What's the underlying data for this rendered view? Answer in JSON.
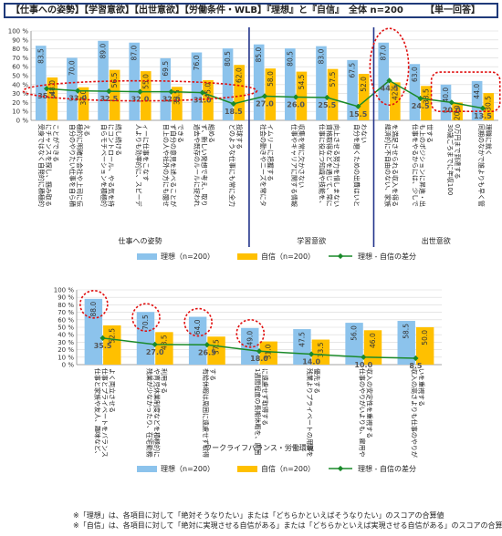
{
  "header": {
    "title": "【仕事への姿勢】【学習意欲】【出世意欲】【労働条件・WLB】『理想』と『自信』　全体 n=200",
    "answer_type": "【単一回答】"
  },
  "legend": {
    "ideal": "理想（n=200）",
    "confidence": "自信（n=200）",
    "diff": "理想 - 自信の差分"
  },
  "colors": {
    "ideal": "#8cc3ec",
    "confidence": "#ffc000",
    "diff": "#1a8a2a",
    "highlight": "#e01010",
    "divider": "#22338a"
  },
  "chart_data": [
    {
      "type": "bar",
      "ylim": [
        0,
        100
      ],
      "yticks": [
        "0 %",
        "10 %",
        "20 %",
        "30 %",
        "40 %",
        "50 %",
        "60 %",
        "70 %",
        "80 %",
        "90 %",
        "100 %"
      ],
      "categories": [
        "受身ではなく自発的に積極的にチャンスを探し、掴み取ることができる",
        "自分のやりたい仕事を自ら積極的に明確に会社や上司に伝える",
        "自らモチベーションを積極的にコントロール、やる気を持続し続ける",
        "人よりも効率的に、スピーディーに仕事をこなす",
        "目上の人や社外の方にも臆せず自分の意見を述べることができる",
        "過去や既存のルールに捉われず、新しい発想で考え、取り組める",
        "どのような仕事にも常に全力投球する",
        "社会の動きやニーズを常にタイムリーに把握する",
        "仕事やキャリアに関する情報収集を常に欠かさない",
        "仕事に役立つ知識や技能を、資格取得などを通じて、常に向上させる努力を惜しまない",
        "自分を磨くための出費はいとわない",
        "経済的に不自由のない、家族を満足させられる収入を得る",
        "仕事をやるからには、少しでも上のポジションに昇進・出世する",
        "30歳ごろまでに年収1000万円まで到達する",
        "同期のなかで誰よりも早く管理職に就く"
      ],
      "series": [
        {
          "name": "理想（n=200）",
          "values": [
            83.5,
            70.0,
            89.0,
            87.0,
            69.5,
            76.0,
            80.5,
            85.0,
            80.5,
            83.0,
            67.5,
            87.0,
            63.0,
            40.0,
            44.0
          ]
        },
        {
          "name": "自信（n=200）",
          "values": [
            48.0,
            37.0,
            56.5,
            55.0,
            37.5,
            45.0,
            62.0,
            58.0,
            54.5,
            57.5,
            52.0,
            42.5,
            38.5,
            20.0,
            30.5
          ]
        },
        {
          "name": "理想 - 自信の差分",
          "values": [
            35.5,
            33.0,
            32.5,
            32.0,
            32.0,
            31.0,
            18.5,
            27.0,
            26.0,
            25.5,
            15.5,
            44.5,
            24.5,
            20.0,
            13.5
          ]
        }
      ],
      "groups": [
        {
          "label": "仕事への姿勢",
          "count": 7
        },
        {
          "label": "学習意欲",
          "count": 4
        },
        {
          "label": "出世意欲",
          "count": 4
        }
      ]
    },
    {
      "type": "bar",
      "ylim": [
        0,
        100
      ],
      "yticks": [
        "0 %",
        "10 %",
        "20 %",
        "30 %",
        "40 %",
        "50 %",
        "60 %",
        "70 %",
        "80 %",
        "90 %",
        "100 %"
      ],
      "categories": [
        "仕事と家族や友人、趣味など、仕事とプライベートをバランスよく両立させる",
        "残業が少なかったり、在宅勤務や育児休業制度などを積極的に利用する",
        "有給休暇は周囲に遠慮せず取得する",
        "1週間程度の長期休暇を、周囲に遠慮せず取得する",
        "残業よりプライベートの用事を優先する",
        "仕事のやりがいよりも、雇用や収入の安定性を重視する",
        "収入の高さよりも仕事のやりがいを重視する"
      ],
      "series": [
        {
          "name": "理想（n=200）",
          "values": [
            88.0,
            70.5,
            64.0,
            49.0,
            47.5,
            56.0,
            58.5
          ]
        },
        {
          "name": "自信（n=200）",
          "values": [
            52.5,
            43.5,
            37.5,
            31.0,
            33.5,
            46.0,
            50.0
          ]
        },
        {
          "name": "理想 - 自信の差分",
          "values": [
            35.5,
            27.0,
            26.5,
            18.0,
            14.0,
            10.0,
            8.5
          ]
        }
      ],
      "groups": [
        {
          "label": "ワークライフバランス・労働環境",
          "count": 7
        }
      ]
    }
  ],
  "notes": [
    "※「理想」は、各項目に対して「絶対そうなりたい」または「どちらかといえばそうなりたい」のスコアの合算値",
    "※「自信」は、各項目に対して「絶対に実現させる自信がある」または「どちらかといえば実現させる自信がある」のスコアの合算値"
  ]
}
